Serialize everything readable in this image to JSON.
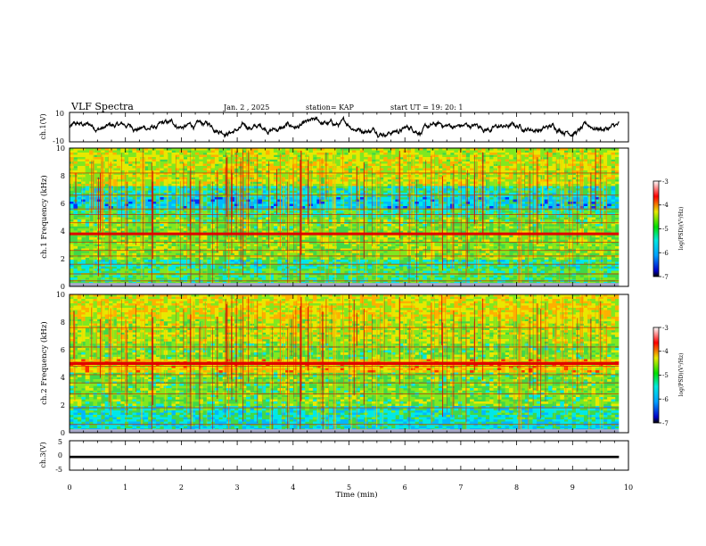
{
  "header": {
    "title": "VLF Spectra",
    "date": "Jan. 2 , 2025",
    "station": "station= KAP",
    "start": "start UT =  19: 20: 1"
  },
  "chart_data": [
    {
      "type": "line",
      "panel": "ch1-waveform",
      "ylabel": "ch.1(V)",
      "ylim": [
        -10,
        10
      ],
      "yticks": [
        "10",
        "-10"
      ],
      "xlim": [
        0,
        10
      ],
      "x_end": 9.83,
      "trace_center_v": 0,
      "trace_amplitude_v": 4
    },
    {
      "type": "heatmap",
      "panel": "ch1-spectrogram",
      "ylabel": "ch.1 Frequency (kHz)",
      "ylim": [
        0,
        10
      ],
      "yticks": [
        "0",
        "2",
        "4",
        "6",
        "8",
        "10"
      ],
      "xlim": [
        0,
        10
      ],
      "colorbar": {
        "label": "log(PSD)(V²/Hz)",
        "range": [
          -7,
          -3
        ],
        "ticks": [
          "-3",
          "-4",
          "-5",
          "-6",
          "-7"
        ]
      },
      "bands_khz": [
        0.4,
        0.9,
        1.6,
        2.2,
        2.6,
        3.2,
        3.8,
        4.6,
        5.2,
        5.6,
        6.6,
        8.2
      ],
      "strong_band_khz": 3.8
    },
    {
      "type": "heatmap",
      "panel": "ch2-spectrogram",
      "ylabel": "ch.2 Frequency (kHz)",
      "ylim": [
        0,
        10
      ],
      "yticks": [
        "0",
        "2",
        "4",
        "6",
        "8",
        "10"
      ],
      "xlim": [
        0,
        10
      ],
      "colorbar": {
        "label": "log(PSD)(V²/Hz)",
        "range": [
          -7,
          -3
        ],
        "ticks": [
          "-3",
          "-4",
          "-5",
          "-6",
          "-7"
        ]
      },
      "bands_khz": [
        0.6,
        1.8,
        2.8,
        3.6,
        4.2,
        4.8,
        5.1,
        6.2,
        7.6
      ],
      "strong_band_khz": 5.0
    },
    {
      "type": "line",
      "panel": "ch3-signal",
      "ylabel": "ch.3(V)",
      "ylim": [
        -5,
        5
      ],
      "yticks": [
        "5",
        "0",
        "-5"
      ],
      "xlim": [
        0,
        10
      ],
      "xticks": [
        "0",
        "1",
        "2",
        "3",
        "4",
        "5",
        "6",
        "7",
        "8",
        "9",
        "10"
      ],
      "xlabel": "Time (min)",
      "x_end": 9.83,
      "band_center_v": -0.5,
      "band_halfwidth_v": 0.4
    }
  ]
}
